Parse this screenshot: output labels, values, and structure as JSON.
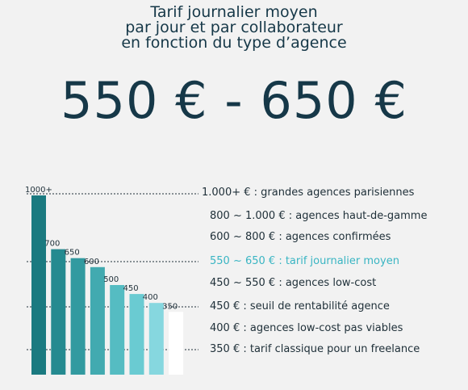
{
  "title_lines": [
    "Tarif journalier moyen",
    "par jour et par collaborateur",
    "en fonction du type d’agence"
  ],
  "headline": "550 € - 650 €",
  "colors": {
    "background": "#f2f2f2",
    "text": "#163848",
    "highlight": "#39b5c3",
    "bars": [
      "#1b7a80",
      "#258a90",
      "#329aa0",
      "#42aab0",
      "#55bcc2",
      "#6acbd2",
      "#86d7df",
      "#ffffff"
    ]
  },
  "chart_data": {
    "type": "bar",
    "categories": [
      "1000+",
      "700",
      "650",
      "600",
      "500",
      "450",
      "400",
      "350"
    ],
    "values": [
      1000,
      700,
      650,
      600,
      500,
      450,
      400,
      350
    ],
    "legend_entries": [
      {
        "text": "1.000+ €  : grandes agences parisiennes",
        "highlight": false
      },
      {
        "text": "800 ~ 1.000 € : agences haut-de-gamme",
        "highlight": false
      },
      {
        "text": "600 ~ 800 € : agences confirmées",
        "highlight": false
      },
      {
        "text": "550 ~ 650 € : tarif journalier moyen",
        "highlight": true
      },
      {
        "text": "450 ~ 550 € : agences low-cost",
        "highlight": false
      },
      {
        "text": "450 € : seuil de rentabilité agence",
        "highlight": false
      },
      {
        "text": "400 € : agences low-cost pas viables",
        "highlight": false
      },
      {
        "text": "350 € : tarif classique pour un freelance",
        "highlight": false
      }
    ]
  }
}
